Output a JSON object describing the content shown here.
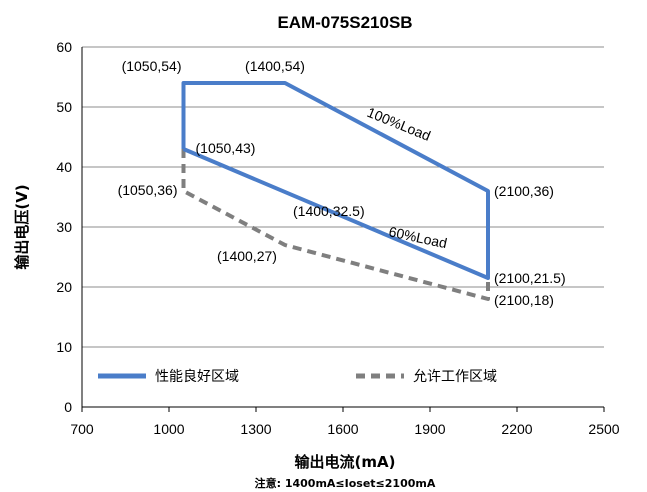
{
  "chart_data": {
    "type": "line",
    "title": "EAM-075S210SB",
    "xlabel": "输出电流(mA)",
    "ylabel": "输出电压(V)",
    "note": "注意: 1400mA≤Ioset≤2100mA",
    "xlim": [
      700,
      2500
    ],
    "ylim": [
      0,
      60
    ],
    "x_ticks": [
      "700",
      "1000",
      "1300",
      "1600",
      "1900",
      "2200",
      "2500"
    ],
    "y_ticks": [
      "0",
      "10",
      "20",
      "30",
      "40",
      "50",
      "60"
    ],
    "grid": true,
    "series": [
      {
        "name": "性能良好区域",
        "color": "#4a7dc9",
        "style": "solid",
        "points": [
          [
            1050,
            43
          ],
          [
            1050,
            54
          ],
          [
            1400,
            54
          ],
          [
            2100,
            36
          ],
          [
            2100,
            21.5
          ],
          [
            1050,
            43
          ]
        ]
      },
      {
        "name": "允许工作区域",
        "color": "#7f7f7f",
        "style": "dashed",
        "points": [
          [
            1050,
            43
          ],
          [
            1050,
            36
          ],
          [
            1400,
            27
          ],
          [
            2100,
            18
          ],
          [
            2100,
            21.5
          ]
        ]
      }
    ],
    "annotations": [
      {
        "text": "(1050,54)",
        "x": 1050,
        "y": 54
      },
      {
        "text": "(1400,54)",
        "x": 1400,
        "y": 54
      },
      {
        "text": "(1050,43)",
        "x": 1050,
        "y": 43
      },
      {
        "text": "(1050,36)",
        "x": 1050,
        "y": 36
      },
      {
        "text": "(1400,32.5)",
        "x": 1400,
        "y": 32.5
      },
      {
        "text": "(1400,27)",
        "x": 1400,
        "y": 27
      },
      {
        "text": "(2100,36)",
        "x": 2100,
        "y": 36
      },
      {
        "text": "(2100,21.5)",
        "x": 2100,
        "y": 21.5
      },
      {
        "text": "(2100,18)",
        "x": 2100,
        "y": 18
      }
    ],
    "curve_labels": [
      {
        "text": "100%Load"
      },
      {
        "text": "60%Load"
      }
    ],
    "legend": {
      "placement": "bottom-inside",
      "items": [
        "性能良好区域",
        "允许工作区域"
      ]
    }
  }
}
